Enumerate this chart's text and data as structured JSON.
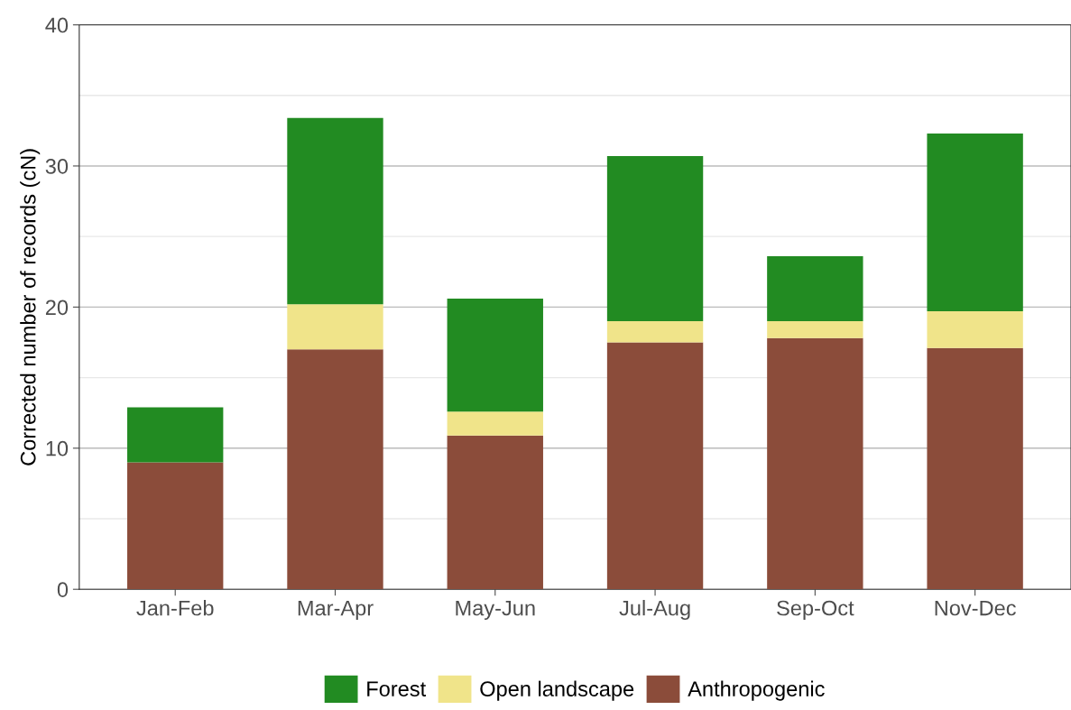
{
  "chart_data": {
    "type": "bar",
    "stacked": true,
    "ylabel": "Corrected number of records (cN)",
    "categories": [
      "Jan-Feb",
      "Mar-Apr",
      "May-Jun",
      "Jul-Aug",
      "Sep-Oct",
      "Nov-Dec"
    ],
    "series": [
      {
        "name": "Anthropogenic",
        "color": "#8b4c3a",
        "values": [
          9.0,
          17.0,
          10.9,
          17.5,
          17.8,
          17.1
        ]
      },
      {
        "name": "Open landscape",
        "color": "#f0e48a",
        "values": [
          0,
          3.2,
          1.7,
          1.5,
          1.2,
          2.6
        ]
      },
      {
        "name": "Forest",
        "color": "#228b22",
        "values": [
          3.9,
          13.2,
          8.0,
          11.7,
          4.6,
          12.6
        ]
      }
    ],
    "ylim": [
      0,
      40
    ],
    "yticks": [
      0,
      {
        "value": 5,
        "label": null
      },
      10,
      {
        "value": 15,
        "label": null
      },
      20,
      {
        "value": 25,
        "label": null
      },
      30,
      {
        "value": 35,
        "label": null
      },
      40
    ],
    "grid": "y",
    "legend": "bottom"
  }
}
